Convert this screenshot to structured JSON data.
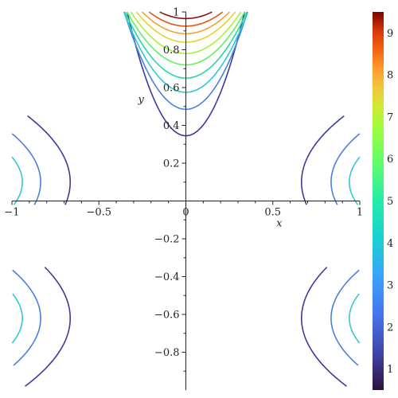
{
  "chart_data": {
    "type": "contour",
    "xlabel": "x",
    "ylabel": "y",
    "xlim": [
      -1,
      1
    ],
    "ylim": [
      -1,
      1
    ],
    "x_ticks": [
      -1,
      -0.5,
      0,
      0.5,
      1
    ],
    "x_tick_labels": [
      "−1",
      "−0.5",
      "0",
      "0.5",
      "1"
    ],
    "y_ticks": [
      -0.8,
      -0.6,
      -0.4,
      -0.2,
      0.2,
      0.4,
      0.6,
      0.8,
      1
    ],
    "y_tick_labels": [
      "−0.8",
      "−0.6",
      "−0.4",
      "−0.2",
      "0.2",
      "0.4",
      "0.6",
      "0.8",
      "1"
    ],
    "grid": false,
    "colorbar": {
      "colormap": "turbo",
      "range": [
        0.5,
        9.5
      ],
      "labels": [
        "1",
        "2",
        "3",
        "4",
        "5",
        "6",
        "7",
        "8",
        "9"
      ],
      "label_values": [
        1,
        2,
        3,
        4,
        5,
        6,
        7,
        8,
        9
      ]
    },
    "levels": [
      1,
      1.5,
      2,
      3,
      4,
      5,
      6,
      7,
      8,
      9
    ],
    "level_colors": [
      "#3b3b9c",
      "#4a7fe0",
      "#2fc9d6",
      "#25d8a4",
      "#5ff25f",
      "#a8f23c",
      "#e2d42a",
      "#f7a02b",
      "#e4531a",
      "#8a1210"
    ],
    "series": [
      {
        "vertex": 0.345,
        "k": 5.75
      },
      {
        "vertex": 0.485,
        "k": 4.1
      },
      {
        "vertex": 0.575,
        "k": 3.35
      },
      {
        "vertex": 0.65,
        "k": 2.85
      },
      {
        "vertex": 0.72,
        "k": 2.45
      },
      {
        "vertex": 0.78,
        "k": 2.2
      },
      {
        "vertex": 0.84,
        "k": 1.98
      },
      {
        "vertex": 0.885,
        "k": 1.82
      },
      {
        "vertex": 0.925,
        "k": 1.68
      },
      {
        "vertex": 0.965,
        "k": 1.55
      }
    ],
    "side_series": [
      {
        "level": 1,
        "tip_x": 0.665,
        "k": 2.0
      },
      {
        "level": 1.5,
        "tip_x": 0.835,
        "k": 2.5
      },
      {
        "level": 2,
        "tip_x": 0.94,
        "k": 3.4
      }
    ]
  }
}
